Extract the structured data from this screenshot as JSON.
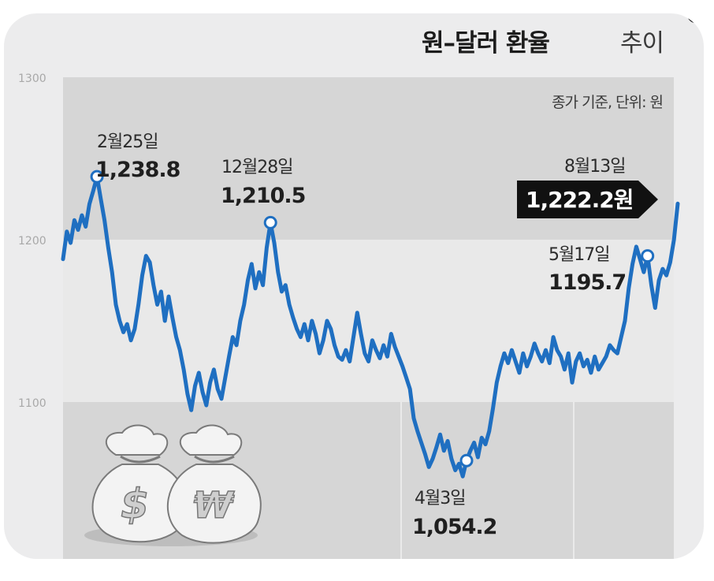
{
  "chart_data": {
    "type": "line",
    "title": "원–달러 환율",
    "title_suffix": "추이",
    "subtitle": "종가 기준, 단위: 원",
    "ylim": [
      1000,
      1300
    ],
    "y_ticks": [
      1300,
      1200,
      1100
    ],
    "grid": true,
    "colors": {
      "line": "#1f6fc1",
      "band_dark": "#d6d6d6",
      "band_light": "#e9e9e9",
      "callout": "#111111"
    },
    "series": [
      {
        "values": [
          1188,
          1205,
          1198,
          1212,
          1206,
          1215,
          1208,
          1222,
          1230,
          1238.8,
          1225,
          1212,
          1195,
          1180,
          1160,
          1150,
          1143,
          1148,
          1138,
          1145,
          1160,
          1178,
          1190,
          1186,
          1172,
          1160,
          1168,
          1150,
          1165,
          1152,
          1140,
          1132,
          1120,
          1105,
          1095,
          1110,
          1118,
          1106,
          1098,
          1112,
          1120,
          1108,
          1102,
          1115,
          1128,
          1140,
          1135,
          1150,
          1160,
          1175,
          1185,
          1170,
          1180,
          1172,
          1195,
          1210.5,
          1198,
          1180,
          1168,
          1172,
          1160,
          1152,
          1145,
          1140,
          1148,
          1138,
          1150,
          1142,
          1130,
          1138,
          1150,
          1145,
          1135,
          1128,
          1126,
          1132,
          1125,
          1140,
          1155,
          1142,
          1130,
          1125,
          1138,
          1132,
          1127,
          1135,
          1128,
          1142,
          1134,
          1128,
          1122,
          1115,
          1108,
          1090,
          1082,
          1075,
          1068,
          1060,
          1065,
          1072,
          1080,
          1070,
          1076,
          1065,
          1058,
          1062,
          1054.2,
          1064,
          1070,
          1075,
          1066,
          1078,
          1074,
          1082,
          1096,
          1112,
          1122,
          1130,
          1124,
          1132,
          1125,
          1118,
          1130,
          1122,
          1128,
          1136,
          1130,
          1125,
          1132,
          1124,
          1140,
          1132,
          1128,
          1120,
          1130,
          1112,
          1125,
          1130,
          1122,
          1126,
          1118,
          1128,
          1120,
          1124,
          1128,
          1135,
          1132,
          1130,
          1140,
          1150,
          1170,
          1185,
          1195.7,
          1188,
          1180,
          1190,
          1172,
          1158,
          1175,
          1182,
          1178,
          1186,
          1200,
          1222.2
        ]
      }
    ],
    "annotations": [
      {
        "date": "2월25일",
        "value": "1,238.8",
        "index": 9
      },
      {
        "date": "12월28일",
        "value": "1,210.5",
        "index": 55
      },
      {
        "date": "4월3일",
        "value": "1,054.2",
        "index": 107
      },
      {
        "date": "5월17일",
        "value": "1195.7",
        "index": 155
      },
      {
        "date": "8월13일",
        "value": "1,222.2원",
        "index": 168
      }
    ]
  }
}
